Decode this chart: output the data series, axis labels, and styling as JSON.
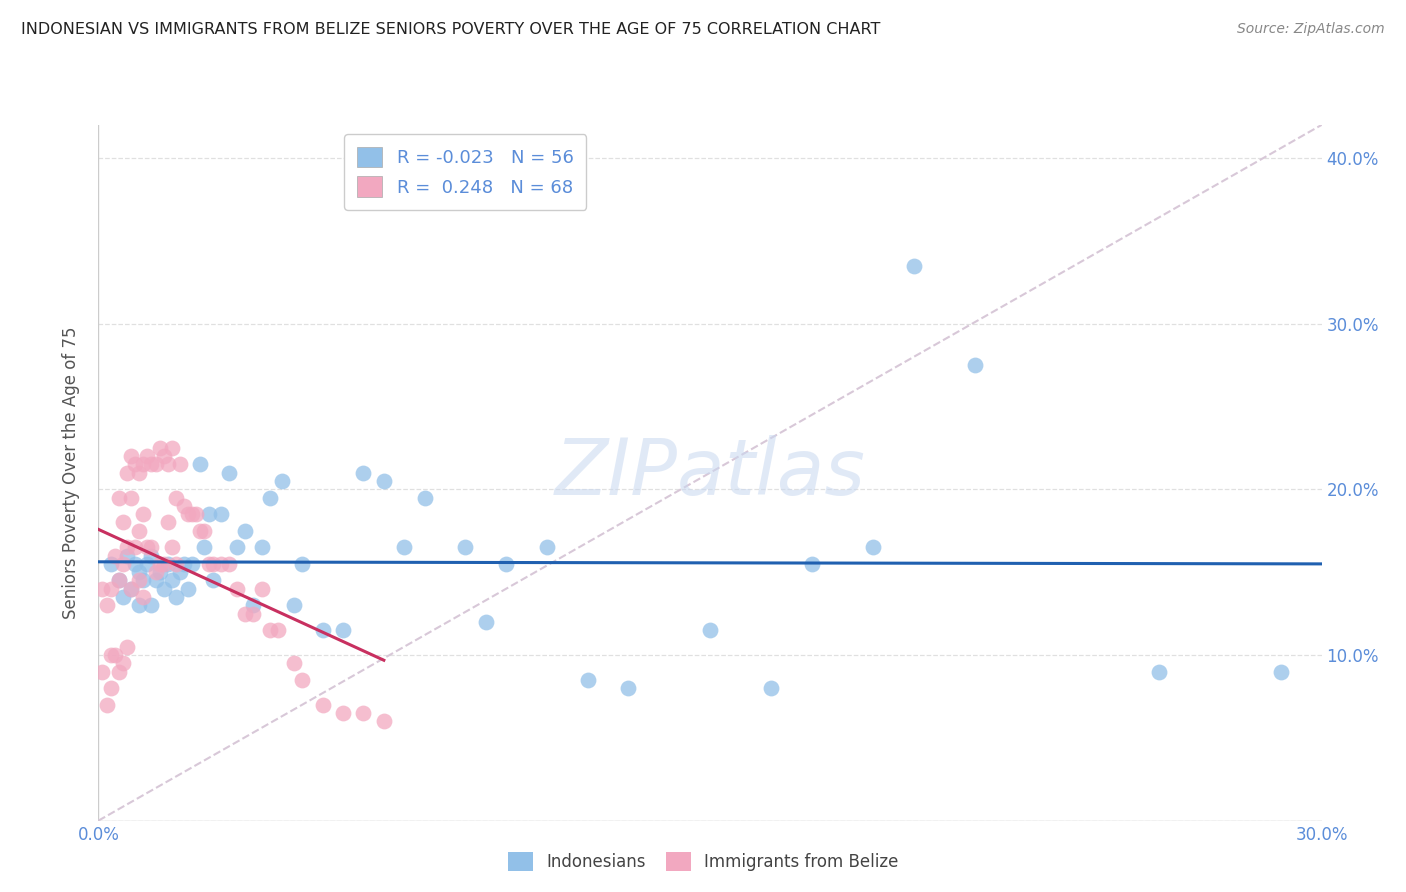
{
  "title": "INDONESIAN VS IMMIGRANTS FROM BELIZE SENIORS POVERTY OVER THE AGE OF 75 CORRELATION CHART",
  "source": "Source: ZipAtlas.com",
  "ylabel": "Seniors Poverty Over the Age of 75",
  "xlim": [
    0.0,
    0.3
  ],
  "ylim": [
    0.0,
    0.42
  ],
  "r_indonesian": "-0.023",
  "n_indonesian": "56",
  "r_belize": "0.248",
  "n_belize": "68",
  "color_indonesian": "#92C0E8",
  "color_belize": "#F2A8C0",
  "line_color_indonesian": "#2060B0",
  "line_color_belize": "#C83060",
  "diagonal_color": "#D8C8D8",
  "background_color": "#FFFFFF",
  "grid_color": "#E0E0E0",
  "title_color": "#222222",
  "axis_label_color": "#5B8DD9",
  "indonesian_x": [
    0.003,
    0.005,
    0.006,
    0.007,
    0.008,
    0.009,
    0.01,
    0.01,
    0.011,
    0.012,
    0.013,
    0.013,
    0.014,
    0.015,
    0.016,
    0.017,
    0.018,
    0.019,
    0.02,
    0.021,
    0.022,
    0.023,
    0.025,
    0.026,
    0.027,
    0.028,
    0.03,
    0.032,
    0.034,
    0.036,
    0.038,
    0.04,
    0.042,
    0.045,
    0.048,
    0.05,
    0.055,
    0.06,
    0.065,
    0.07,
    0.075,
    0.08,
    0.09,
    0.095,
    0.1,
    0.11,
    0.12,
    0.13,
    0.15,
    0.165,
    0.175,
    0.19,
    0.2,
    0.215,
    0.26,
    0.29
  ],
  "indonesian_y": [
    0.155,
    0.145,
    0.135,
    0.16,
    0.14,
    0.155,
    0.15,
    0.13,
    0.145,
    0.155,
    0.16,
    0.13,
    0.145,
    0.15,
    0.14,
    0.155,
    0.145,
    0.135,
    0.15,
    0.155,
    0.14,
    0.155,
    0.215,
    0.165,
    0.185,
    0.145,
    0.185,
    0.21,
    0.165,
    0.175,
    0.13,
    0.165,
    0.195,
    0.205,
    0.13,
    0.155,
    0.115,
    0.115,
    0.21,
    0.205,
    0.165,
    0.195,
    0.165,
    0.12,
    0.155,
    0.165,
    0.085,
    0.08,
    0.115,
    0.08,
    0.155,
    0.165,
    0.335,
    0.275,
    0.09,
    0.09
  ],
  "belize_x": [
    0.001,
    0.001,
    0.002,
    0.002,
    0.003,
    0.003,
    0.003,
    0.004,
    0.004,
    0.005,
    0.005,
    0.005,
    0.006,
    0.006,
    0.006,
    0.007,
    0.007,
    0.007,
    0.008,
    0.008,
    0.008,
    0.009,
    0.009,
    0.01,
    0.01,
    0.01,
    0.011,
    0.011,
    0.011,
    0.012,
    0.012,
    0.013,
    0.013,
    0.014,
    0.014,
    0.015,
    0.015,
    0.016,
    0.016,
    0.017,
    0.017,
    0.018,
    0.018,
    0.019,
    0.019,
    0.02,
    0.021,
    0.022,
    0.023,
    0.024,
    0.025,
    0.026,
    0.027,
    0.028,
    0.03,
    0.032,
    0.034,
    0.036,
    0.038,
    0.04,
    0.042,
    0.044,
    0.048,
    0.05,
    0.055,
    0.06,
    0.065,
    0.07
  ],
  "belize_y": [
    0.14,
    0.09,
    0.13,
    0.07,
    0.14,
    0.1,
    0.08,
    0.16,
    0.1,
    0.195,
    0.145,
    0.09,
    0.18,
    0.155,
    0.095,
    0.21,
    0.165,
    0.105,
    0.22,
    0.195,
    0.14,
    0.215,
    0.165,
    0.21,
    0.175,
    0.145,
    0.215,
    0.185,
    0.135,
    0.22,
    0.165,
    0.215,
    0.165,
    0.215,
    0.15,
    0.225,
    0.155,
    0.22,
    0.155,
    0.215,
    0.18,
    0.225,
    0.165,
    0.195,
    0.155,
    0.215,
    0.19,
    0.185,
    0.185,
    0.185,
    0.175,
    0.175,
    0.155,
    0.155,
    0.155,
    0.155,
    0.14,
    0.125,
    0.125,
    0.14,
    0.115,
    0.115,
    0.095,
    0.085,
    0.07,
    0.065,
    0.065,
    0.06
  ],
  "watermark_text": "ZIPatlas",
  "legend_label_indo": "Indonesians",
  "legend_label_belize": "Immigrants from Belize"
}
